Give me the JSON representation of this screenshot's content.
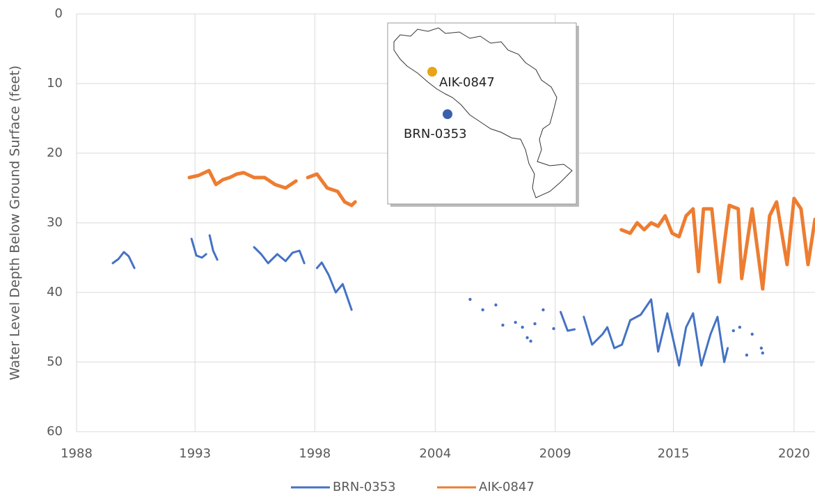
{
  "chart_data": {
    "type": "line",
    "y_label": "Water Level Depth Below Ground Surface (feet)",
    "ylim": [
      0,
      60
    ],
    "yticks": [
      0,
      10,
      20,
      30,
      40,
      50,
      60
    ],
    "y_inverted": true,
    "xlim": [
      1988,
      2021.85
    ],
    "xticks": [
      {
        "value": 1988,
        "label": "1988"
      },
      {
        "value": 1993.43,
        "label": "1993"
      },
      {
        "value": 1998.92,
        "label": "1998"
      },
      {
        "value": 2004.44,
        "label": "2004"
      },
      {
        "value": 2009.94,
        "label": "2009"
      },
      {
        "value": 2015.36,
        "label": "2015"
      },
      {
        "value": 2020.89,
        "label": "2020"
      }
    ],
    "grid": true,
    "legend": "bottom",
    "series": [
      {
        "name": "BRN-0353",
        "color": "#4472c4",
        "x": [
          1989.66,
          1989.92,
          1990.17,
          1990.39,
          1990.65,
          1993.27,
          1993.49,
          1993.75,
          1993.94,
          1994.1,
          1994.26,
          1994.45,
          1996.14,
          1996.46,
          1996.78,
          1997.2,
          1997.58,
          1997.9,
          1998.22,
          1998.44,
          1999.02,
          1999.24,
          1999.56,
          1999.88,
          2000.2,
          2000.61,
          2006.04,
          2006.62,
          2007.22,
          2007.54,
          2008.12,
          2008.44,
          2008.66,
          2008.82,
          2009.01,
          2009.39,
          2009.87,
          2010.19,
          2010.51,
          2010.83,
          2011.25,
          2011.63,
          2012.11,
          2012.33,
          2012.65,
          2013.0,
          2013.38,
          2013.86,
          2014.34,
          2014.66,
          2015.08,
          2015.62,
          2015.94,
          2016.26,
          2016.64,
          2017.06,
          2017.38,
          2017.69,
          2017.85,
          2018.11,
          2018.4,
          2018.72,
          2018.97,
          2019.39,
          2019.45
        ],
        "values": [
          35.8,
          35.2,
          34.2,
          34.8,
          36.5,
          32.3,
          34.7,
          35,
          34.5,
          31.8,
          34,
          35.3,
          33.5,
          34.5,
          35.8,
          34.5,
          35.5,
          34.3,
          34,
          35.8,
          36.5,
          35.7,
          37.5,
          40,
          38.8,
          42.5,
          41,
          42.5,
          41.8,
          44.7,
          44.3,
          45,
          46.5,
          47,
          44.5,
          42.5,
          45.2,
          42.8,
          45.5,
          45.3,
          43.5,
          47.5,
          46,
          45,
          48,
          47.5,
          44,
          43.2,
          41,
          48.5,
          43,
          50.5,
          45,
          43,
          50.5,
          46,
          43.5,
          50,
          48,
          45.5,
          45,
          49,
          46,
          48,
          48.7
        ],
        "breaks_before": [
          5,
          9,
          12,
          20,
          26,
          27,
          28,
          29,
          30,
          31,
          32,
          33,
          34,
          35,
          36,
          37,
          40,
          59,
          60,
          61,
          62,
          63,
          64
        ]
      },
      {
        "name": "AIK-0847",
        "color": "#ed7d31",
        "x": [
          1993.17,
          1993.59,
          1994.07,
          1994.39,
          1994.71,
          1995.02,
          1995.34,
          1995.66,
          1996.14,
          1996.62,
          1997.1,
          1997.58,
          1998.06,
          1998.6,
          1999.02,
          1999.49,
          1999.97,
          2000.29,
          2000.61,
          2000.77,
          2012.97,
          2013.38,
          2013.7,
          2014.02,
          2014.34,
          2014.66,
          2014.98,
          2015.3,
          2015.62,
          2015.94,
          2016.26,
          2016.51,
          2016.74,
          2017.12,
          2017.47,
          2017.92,
          2018.33,
          2018.49,
          2018.97,
          2019.45,
          2019.77,
          2020.09,
          2020.57,
          2020.89,
          2021.21,
          2021.53,
          2021.85
        ],
        "values": [
          23.5,
          23.2,
          22.5,
          24.5,
          23.8,
          23.5,
          23,
          22.8,
          23.5,
          23.5,
          24.5,
          25,
          24,
          23.5,
          23,
          25,
          25.5,
          27,
          27.5,
          27,
          31,
          31.5,
          30,
          31,
          30,
          30.5,
          29,
          31.5,
          32,
          29,
          28,
          37,
          28,
          28,
          38.5,
          27.5,
          28,
          38,
          28,
          39.5,
          29,
          27,
          36,
          26.5,
          28,
          36,
          29.5
        ],
        "breaks_before": [
          13,
          20
        ]
      }
    ]
  },
  "inset": {
    "labels": [
      "AIK-0847",
      "BRN-0353"
    ]
  }
}
